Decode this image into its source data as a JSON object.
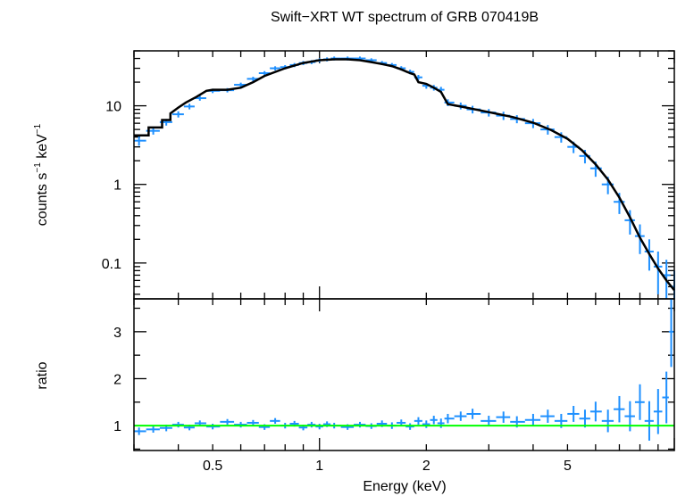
{
  "chart_data": [
    {
      "type": "line",
      "title": "Swift−XRT WT spectrum of GRB 070419B",
      "ylabel_main": "counts s",
      "ylabel_sup1": "−1",
      "ylabel_mid": " keV",
      "ylabel_sup2": "−1",
      "xscale": "log",
      "yscale": "log",
      "xlim": [
        0.3,
        10.0
      ],
      "ylim": [
        0.035,
        50
      ],
      "yticks": [
        0.1,
        1,
        10
      ],
      "ytick_labels": [
        "0.1",
        "1",
        "10"
      ],
      "series": [
        {
          "role": "data",
          "color": "#1e90ff",
          "x": [
            0.31,
            0.34,
            0.37,
            0.4,
            0.43,
            0.46,
            0.5,
            0.55,
            0.6,
            0.65,
            0.7,
            0.75,
            0.8,
            0.85,
            0.9,
            0.95,
            1.0,
            1.05,
            1.1,
            1.2,
            1.3,
            1.4,
            1.5,
            1.6,
            1.7,
            1.8,
            1.9,
            2.0,
            2.1,
            2.2,
            2.3,
            2.5,
            2.7,
            3.0,
            3.3,
            3.6,
            4.0,
            4.4,
            4.8,
            5.2,
            5.6,
            6.0,
            6.5,
            7.0,
            7.5,
            8.0,
            8.5,
            9.0,
            9.5,
            10.0
          ],
          "y": [
            3.6,
            4.8,
            6.2,
            7.8,
            9.8,
            12.5,
            15.5,
            15.8,
            18.5,
            22,
            26,
            30,
            31,
            33,
            35,
            36,
            38,
            39,
            40,
            40,
            40,
            38,
            35,
            33,
            30,
            27,
            23,
            18,
            17,
            16,
            11,
            10,
            9,
            8.2,
            7.5,
            6.8,
            6.0,
            5.0,
            4.0,
            3.0,
            2.3,
            1.6,
            1.0,
            0.6,
            0.35,
            0.22,
            0.14,
            0.09,
            0.07,
            0.05
          ],
          "err": [
            0.5,
            0.5,
            0.6,
            0.7,
            0.8,
            0.9,
            1.0,
            1.0,
            1.2,
            1.4,
            1.6,
            1.8,
            1.9,
            2.0,
            2.1,
            2.1,
            2.2,
            2.3,
            2.3,
            2.3,
            2.3,
            2.2,
            2.1,
            2.0,
            1.9,
            1.8,
            1.7,
            1.5,
            1.4,
            1.4,
            1.1,
            1.0,
            1.0,
            0.9,
            0.9,
            0.8,
            0.8,
            0.7,
            0.6,
            0.5,
            0.45,
            0.35,
            0.25,
            0.18,
            0.12,
            0.09,
            0.06,
            0.05,
            0.04,
            0.03
          ]
        },
        {
          "role": "model",
          "color": "#000000",
          "x": [
            0.3,
            0.33,
            0.33,
            0.36,
            0.36,
            0.38,
            0.38,
            0.4,
            0.42,
            0.45,
            0.48,
            0.5,
            0.55,
            0.6,
            0.65,
            0.7,
            0.8,
            0.9,
            1.0,
            1.1,
            1.2,
            1.3,
            1.4,
            1.5,
            1.6,
            1.7,
            1.8,
            1.85,
            1.9,
            2.0,
            2.1,
            2.2,
            2.3,
            2.5,
            3.0,
            3.5,
            4.0,
            4.5,
            5.0,
            5.5,
            6.0,
            6.5,
            7.0,
            7.5,
            8.0,
            8.5,
            9.0,
            9.5,
            10.0
          ],
          "y": [
            4.2,
            4.2,
            5.3,
            5.3,
            6.6,
            6.6,
            8.0,
            9.5,
            11,
            13,
            15.5,
            16,
            16,
            17,
            20,
            24,
            30,
            35,
            38,
            39,
            39,
            38,
            36,
            34,
            32,
            29,
            26,
            25,
            20,
            19,
            17,
            15,
            10.5,
            9.8,
            8.3,
            7.2,
            6.1,
            4.9,
            3.8,
            2.7,
            1.8,
            1.15,
            0.68,
            0.38,
            0.21,
            0.13,
            0.085,
            0.06,
            0.045
          ]
        }
      ]
    },
    {
      "type": "line",
      "ylabel": "ratio",
      "xlabel": "Energy (keV)",
      "xscale": "log",
      "yscale": "linear",
      "xlim": [
        0.3,
        10.0
      ],
      "ylim": [
        0.47,
        3.7
      ],
      "yticks": [
        1,
        2,
        3
      ],
      "ytick_labels": [
        "1",
        "2",
        "3"
      ],
      "xticks": [
        0.5,
        1,
        2,
        5
      ],
      "xtick_labels": [
        "0.5",
        "1",
        "2",
        "5"
      ],
      "series": [
        {
          "role": "data",
          "color": "#1e90ff",
          "x": [
            0.31,
            0.34,
            0.37,
            0.4,
            0.43,
            0.46,
            0.5,
            0.55,
            0.6,
            0.65,
            0.7,
            0.75,
            0.8,
            0.85,
            0.9,
            0.95,
            1.0,
            1.05,
            1.1,
            1.2,
            1.3,
            1.4,
            1.5,
            1.6,
            1.7,
            1.8,
            1.9,
            2.0,
            2.1,
            2.2,
            2.3,
            2.5,
            2.7,
            3.0,
            3.3,
            3.6,
            4.0,
            4.4,
            4.8,
            5.2,
            5.6,
            6.0,
            6.5,
            7.0,
            7.5,
            8.0,
            8.5,
            9.0,
            9.5,
            9.8
          ],
          "y": [
            0.88,
            0.92,
            0.95,
            1.02,
            0.96,
            1.05,
            0.98,
            1.08,
            1.02,
            1.06,
            0.97,
            1.1,
            1.0,
            1.04,
            0.96,
            1.02,
            0.98,
            1.03,
            1.0,
            0.97,
            1.02,
            0.99,
            1.04,
            1.0,
            1.06,
            0.98,
            1.1,
            1.03,
            1.12,
            1.05,
            1.15,
            1.2,
            1.25,
            1.1,
            1.18,
            1.08,
            1.12,
            1.2,
            1.1,
            1.25,
            1.15,
            1.3,
            1.1,
            1.35,
            1.2,
            1.5,
            1.1,
            1.3,
            1.6,
            3.0
          ],
          "err": [
            0.08,
            0.07,
            0.07,
            0.06,
            0.06,
            0.06,
            0.06,
            0.06,
            0.06,
            0.06,
            0.06,
            0.06,
            0.06,
            0.06,
            0.06,
            0.06,
            0.06,
            0.06,
            0.06,
            0.06,
            0.06,
            0.06,
            0.07,
            0.07,
            0.07,
            0.07,
            0.08,
            0.08,
            0.09,
            0.1,
            0.1,
            0.1,
            0.11,
            0.11,
            0.12,
            0.12,
            0.13,
            0.14,
            0.15,
            0.17,
            0.19,
            0.21,
            0.24,
            0.28,
            0.32,
            0.38,
            0.42,
            0.48,
            0.55,
            0.75
          ]
        },
        {
          "role": "unity",
          "color": "#00ff00",
          "x": [
            0.3,
            10.0
          ],
          "y": [
            1,
            1
          ]
        }
      ]
    }
  ]
}
